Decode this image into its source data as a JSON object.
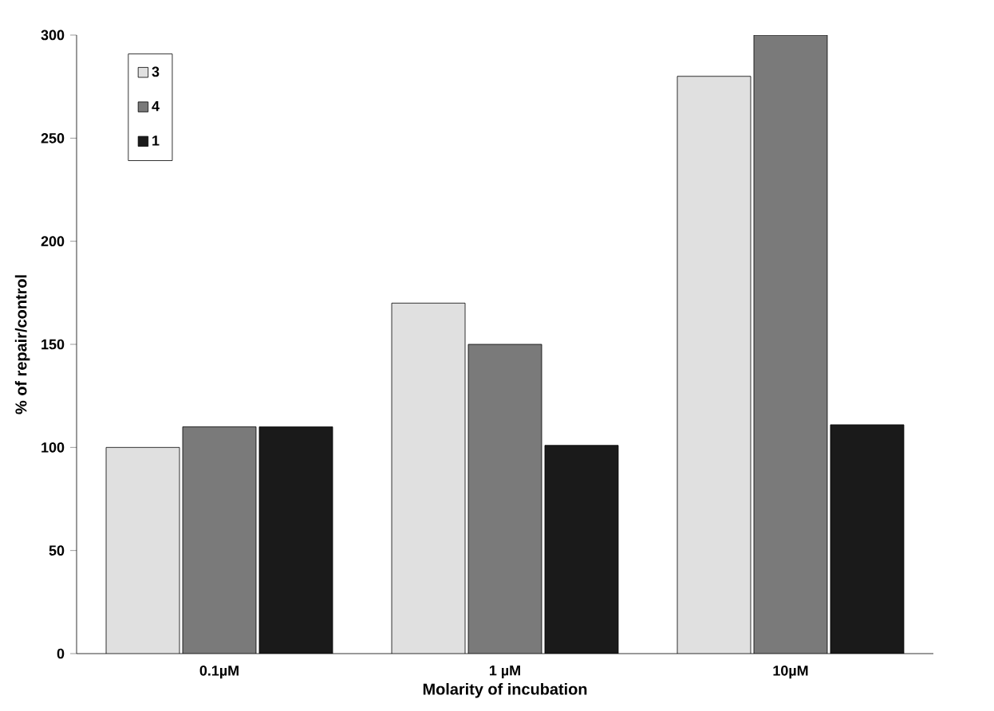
{
  "chart_data": {
    "type": "bar",
    "xlabel": "Molarity of incubation",
    "ylabel": "% of repair/control",
    "categories": [
      "0.1µM",
      "1 µM",
      "10µM"
    ],
    "series": [
      {
        "name": "3",
        "color": "#e0e0e0",
        "values": [
          100,
          170,
          280
        ]
      },
      {
        "name": "4",
        "color": "#7a7a7a",
        "values": [
          110,
          150,
          300
        ]
      },
      {
        "name": "1",
        "color": "#1a1a1a",
        "values": [
          110,
          101,
          111
        ]
      }
    ],
    "ylim": [
      0,
      300
    ],
    "yticks": [
      0,
      50,
      100,
      150,
      200,
      250,
      300
    ],
    "legend": "top left",
    "grid": false
  }
}
